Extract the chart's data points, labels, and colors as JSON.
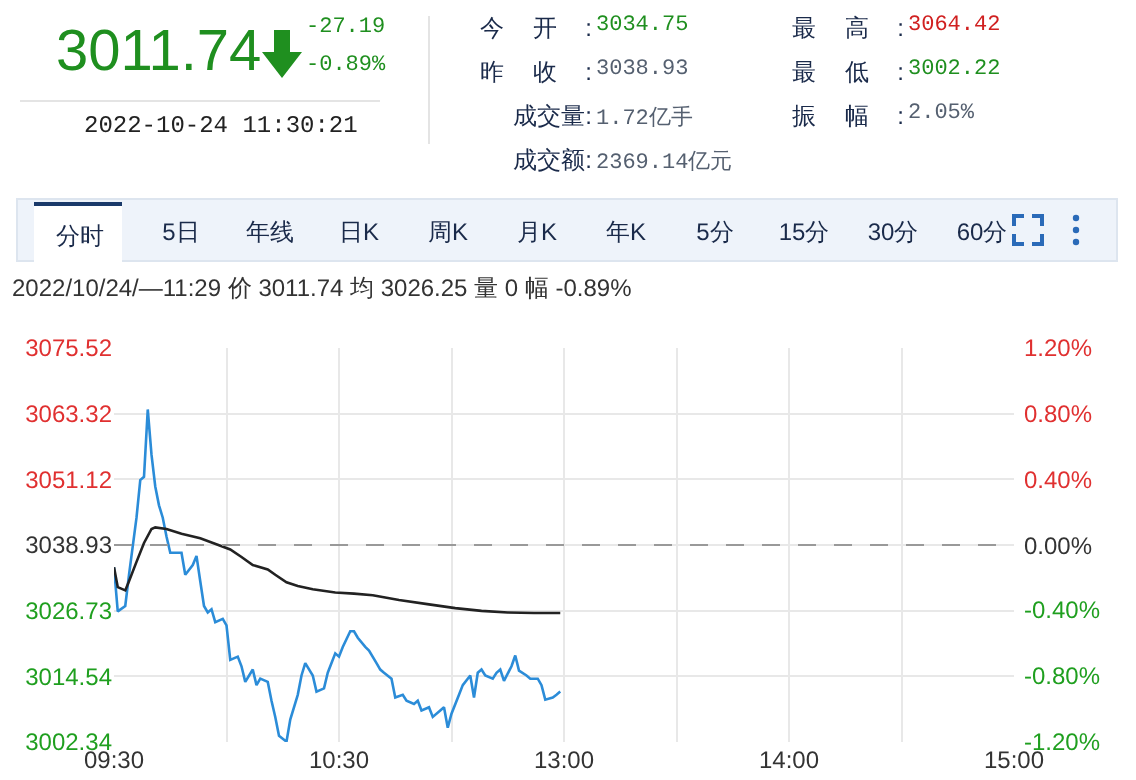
{
  "chart_data": [
    {
      "type": "other",
      "annotations": [
        "3011.74",
        "-27.19",
        "-0.89%",
        "2022-10-24 11:30:21",
        "今开:",
        "3034.75",
        "最高:",
        "3064.42",
        "昨收:",
        "3038.93",
        "最低:",
        "3002.22",
        "成交量:",
        "1.72亿手",
        "振幅:",
        "2.05%",
        "成交额:",
        "2369.14亿元",
        "分时",
        "5日",
        "年线",
        "日K",
        "周K",
        "月K",
        "年K",
        "5分",
        "15分",
        "30分",
        "60分"
      ]
    },
    {
      "type": "line",
      "subtitle": "2022/10/24/—11:29 价 3011.74 均 3026.25 量 0 幅 -0.89%",
      "categories": [
        "09:30",
        null,
        null,
        null,
        null,
        null,
        null,
        null,
        null,
        null,
        null,
        null,
        null,
        null,
        null,
        null,
        null,
        null,
        null,
        null,
        null,
        null,
        null,
        null,
        null,
        null,
        null,
        null,
        null,
        null,
        null,
        null,
        null,
        null,
        null,
        null,
        null,
        null,
        null,
        null,
        null,
        null,
        null,
        null,
        null,
        null,
        null,
        null,
        null,
        null,
        null,
        null,
        null,
        null,
        null,
        null,
        null,
        null,
        null,
        null,
        "10:30",
        null,
        null,
        null,
        null,
        null,
        null,
        null,
        null,
        null,
        null,
        null,
        null,
        null,
        null,
        null,
        null,
        null,
        null,
        null,
        null,
        null,
        null,
        null,
        null,
        null,
        null,
        null,
        null,
        null,
        null,
        null,
        null,
        null,
        null,
        null,
        null,
        null,
        null,
        null,
        null,
        null,
        null,
        null,
        null,
        null,
        null,
        null,
        null,
        null,
        null,
        null,
        null,
        null,
        null,
        null,
        null,
        null,
        null,
        null,
        "13:00",
        null,
        null,
        null,
        null,
        null,
        null,
        null,
        null,
        null,
        null,
        null,
        null,
        null,
        null,
        null,
        null,
        null,
        null,
        null,
        null,
        null,
        null,
        null,
        null,
        null,
        null,
        null,
        null,
        null,
        null,
        null,
        null,
        null,
        null,
        null,
        null,
        null,
        null,
        null,
        null,
        null,
        null,
        null,
        null,
        null,
        null,
        null,
        null,
        null,
        null,
        null,
        null,
        null,
        null,
        null,
        null,
        null,
        null,
        null,
        "14:00",
        null,
        null,
        null,
        null,
        null,
        null,
        null,
        null,
        null,
        null,
        null,
        null,
        null,
        null,
        null,
        null,
        null,
        null,
        null,
        null,
        null,
        null,
        null,
        null,
        null,
        null,
        null,
        null,
        null,
        null,
        null,
        null,
        null,
        null,
        null,
        null,
        null,
        null,
        null,
        null,
        null,
        null,
        null,
        null,
        null,
        null,
        null,
        null,
        null,
        null,
        null,
        null,
        null,
        null,
        null,
        null,
        null,
        null,
        null,
        "15:00"
      ],
      "series": [
        {
          "color": "#2b8cd8",
          "values": [
            3034.8,
            3026.6,
            null,
            3027.6,
            3033.4,
            null,
            3044.0,
            3051.0,
            3051.6,
            3064.1,
            3055.7,
            3049.8,
            3046.3,
            3044.0,
            3040.5,
            3037.5,
            null,
            3037.5,
            3037.5,
            3033.4,
            null,
            3035.2,
            3036.9,
            3032.2,
            3027.6,
            3026.4,
            3027.0,
            3024.6,
            null,
            3025.2,
            3024.0,
            3017.6,
            null,
            3018.2,
            3016.4,
            3013.5,
            null,
            3015.8,
            3012.9,
            3014.1,
            null,
            3013.5,
            3010.0,
            3007.0,
            3003.5,
            null,
            3002.4,
            3006.5,
            null,
            3011.1,
            3014.7,
            3017.0,
            null,
            3014.7,
            3011.7,
            null,
            3012.3,
            3015.2,
            null,
            3018.8,
            3018.2,
            3020.0,
            null,
            3022.9,
            3022.9,
            3021.7,
            null,
            3020.0,
            3019.3,
            null,
            3017.0,
            3015.8,
            3015.2,
            null,
            3014.1,
            3010.6,
            null,
            3011.1,
            3010.0,
            null,
            3009.4,
            3010.0,
            3008.2,
            null,
            3008.8,
            3007.0,
            null,
            3008.2,
            3008.8,
            3005.0,
            3007.6,
            null,
            3011.1,
            3012.9,
            null,
            3014.7,
            3010.6,
            3015.2,
            3015.8,
            3014.7,
            null,
            3014.1,
            3015.2,
            3015.8,
            3013.7,
            null,
            3016.4,
            3018.4,
            3015.6,
            null,
            3014.7,
            3014.1,
            null,
            3014.1,
            3012.9,
            3010.2,
            null,
            3010.6,
            3011.1,
            3011.7,
            null,
            null,
            null,
            null,
            null,
            null,
            null,
            null,
            null,
            null,
            null,
            null,
            null,
            null,
            null,
            null,
            null,
            null,
            null,
            null,
            null,
            null,
            null,
            null,
            null,
            null,
            null,
            null,
            null,
            null,
            null,
            null,
            null,
            null,
            null,
            null,
            null,
            null,
            null,
            null,
            null,
            null,
            null,
            null,
            null,
            null,
            null,
            null,
            null,
            null,
            null,
            null,
            null,
            null,
            null,
            null,
            null,
            null,
            null,
            null,
            null,
            null,
            null,
            null,
            null,
            null,
            null,
            null,
            null,
            null,
            null,
            null,
            null,
            null,
            null,
            null,
            null,
            null,
            null,
            null,
            null,
            null,
            null,
            null,
            null,
            null,
            null,
            null,
            null,
            null,
            null,
            null,
            null,
            null,
            null,
            null,
            null,
            null,
            null,
            null,
            null,
            null,
            null,
            null,
            null,
            null,
            null,
            null,
            null,
            null,
            null,
            null,
            null,
            null,
            null,
            null,
            null,
            null,
            null,
            null,
            null
          ]
        },
        {
          "color": "#222222",
          "values": [
            3034.8,
            3031.1,
            null,
            3030.5,
            3032.2,
            null,
            3035.8,
            null,
            3039.3,
            null,
            3041.9,
            3042.2,
            null,
            null,
            3041.9,
            null,
            null,
            null,
            3041.0,
            null,
            null,
            null,
            null,
            3040.2,
            null,
            null,
            null,
            null,
            3038.9,
            null,
            null,
            3038.1,
            null,
            null,
            3036.7,
            null,
            null,
            3035.2,
            null,
            null,
            null,
            3034.4,
            null,
            3033.4,
            null,
            null,
            3032.0,
            null,
            null,
            3031.3,
            null,
            null,
            null,
            3030.7,
            null,
            null,
            null,
            null,
            null,
            3030.1,
            null,
            null,
            null,
            null,
            3029.9,
            null,
            null,
            null,
            null,
            3029.6,
            null,
            null,
            null,
            null,
            null,
            null,
            3028.7,
            null,
            null,
            null,
            null,
            null,
            null,
            null,
            3027.9,
            null,
            null,
            null,
            null,
            null,
            null,
            3027.2,
            null,
            null,
            null,
            null,
            null,
            null,
            3026.7,
            null,
            null,
            null,
            null,
            null,
            null,
            3026.4,
            null,
            null,
            null,
            null,
            null,
            null,
            3026.3,
            null,
            null,
            null,
            null,
            null,
            null,
            3026.3,
            null,
            null,
            null,
            null,
            null,
            null,
            null,
            null,
            null,
            null,
            null,
            null,
            null,
            null,
            null,
            null,
            null,
            null,
            null,
            null,
            null,
            null,
            null,
            null,
            null,
            null,
            null,
            null,
            null,
            null,
            null,
            null,
            null,
            null,
            null,
            null,
            null,
            null,
            null,
            null,
            null,
            null,
            null,
            null,
            null,
            null,
            null,
            null,
            null,
            null,
            null,
            null,
            null,
            null,
            null,
            null,
            null,
            null,
            null,
            null,
            null,
            null,
            null,
            null,
            null,
            null,
            null,
            null,
            null,
            null,
            null,
            null,
            null,
            null,
            null,
            null,
            null,
            null,
            null,
            null,
            null,
            null,
            null,
            null,
            null,
            null,
            null,
            null,
            null,
            null,
            null,
            null,
            null,
            null,
            null,
            null,
            null,
            null,
            null,
            null,
            null,
            null,
            null,
            null,
            null,
            null,
            null,
            null,
            null,
            null,
            null,
            null,
            null,
            null,
            null,
            null,
            null,
            null,
            null,
            null,
            null
          ]
        }
      ],
      "ylim": [
        3002.34,
        3075.52
      ],
      "yticks": [
        3002.34,
        3014.54,
        3026.73,
        3038.93,
        3051.12,
        3063.32,
        3075.52
      ],
      "y2lim": [
        -1.2,
        1.2
      ],
      "y2ticks": [
        {
          "value": -1.2,
          "label": "-1.20%"
        },
        {
          "value": -0.8,
          "label": "-0.80%"
        },
        {
          "value": -0.4,
          "label": "-0.40%"
        },
        {
          "value": 0,
          "label": "0.00%"
        },
        {
          "value": 0.4,
          "label": "0.40%"
        },
        {
          "value": 0.8,
          "label": "0.80%"
        },
        {
          "value": 1.2,
          "label": "1.20%"
        }
      ],
      "ref_lines": [
        {
          "axis": "y",
          "value": 3038.93,
          "color": "#999999",
          "line_style": "dashed"
        }
      ],
      "grid": true,
      "marker": "none",
      "line_style": "solid"
    }
  ]
}
